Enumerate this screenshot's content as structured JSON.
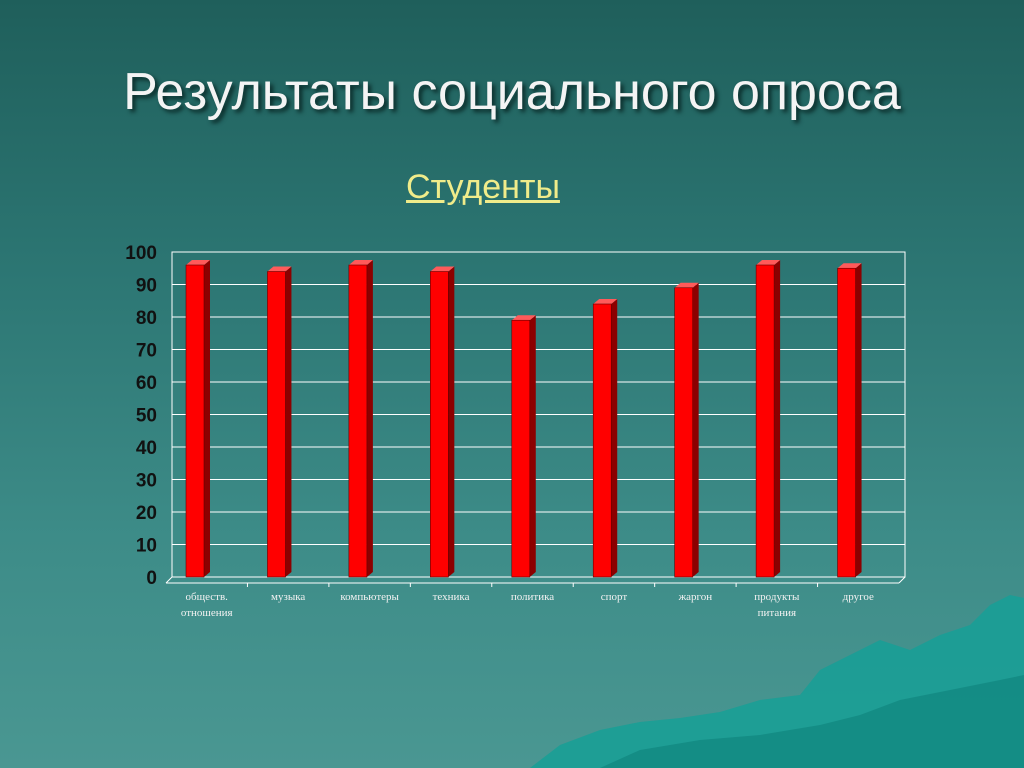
{
  "slide": {
    "title": "Результаты социального опроса",
    "subtitle": "Студенты"
  },
  "colors": {
    "bar": "#ff0000",
    "bar_side": "#8c0000",
    "bar_top": "#ff5a5a",
    "grid": "#ffffff",
    "title_text": "#f4f4f4",
    "subtitle_text": "#f0ec8a"
  },
  "chart_data": {
    "type": "bar",
    "title": "Студенты",
    "xlabel": "",
    "ylabel": "",
    "ylim": [
      0,
      100
    ],
    "yticks": [
      0,
      10,
      20,
      30,
      40,
      50,
      60,
      70,
      80,
      90,
      100
    ],
    "grid": true,
    "legend": "none",
    "categories": [
      [
        "обществ.",
        "отношения"
      ],
      [
        "музыка"
      ],
      [
        "компьютеры"
      ],
      [
        "техника"
      ],
      [
        "политика"
      ],
      [
        "спорт"
      ],
      [
        "жаргон"
      ],
      [
        "продукты",
        "питания"
      ],
      [
        "другое"
      ]
    ],
    "values": [
      96,
      94,
      96,
      94,
      79,
      84,
      89,
      96,
      95
    ]
  }
}
